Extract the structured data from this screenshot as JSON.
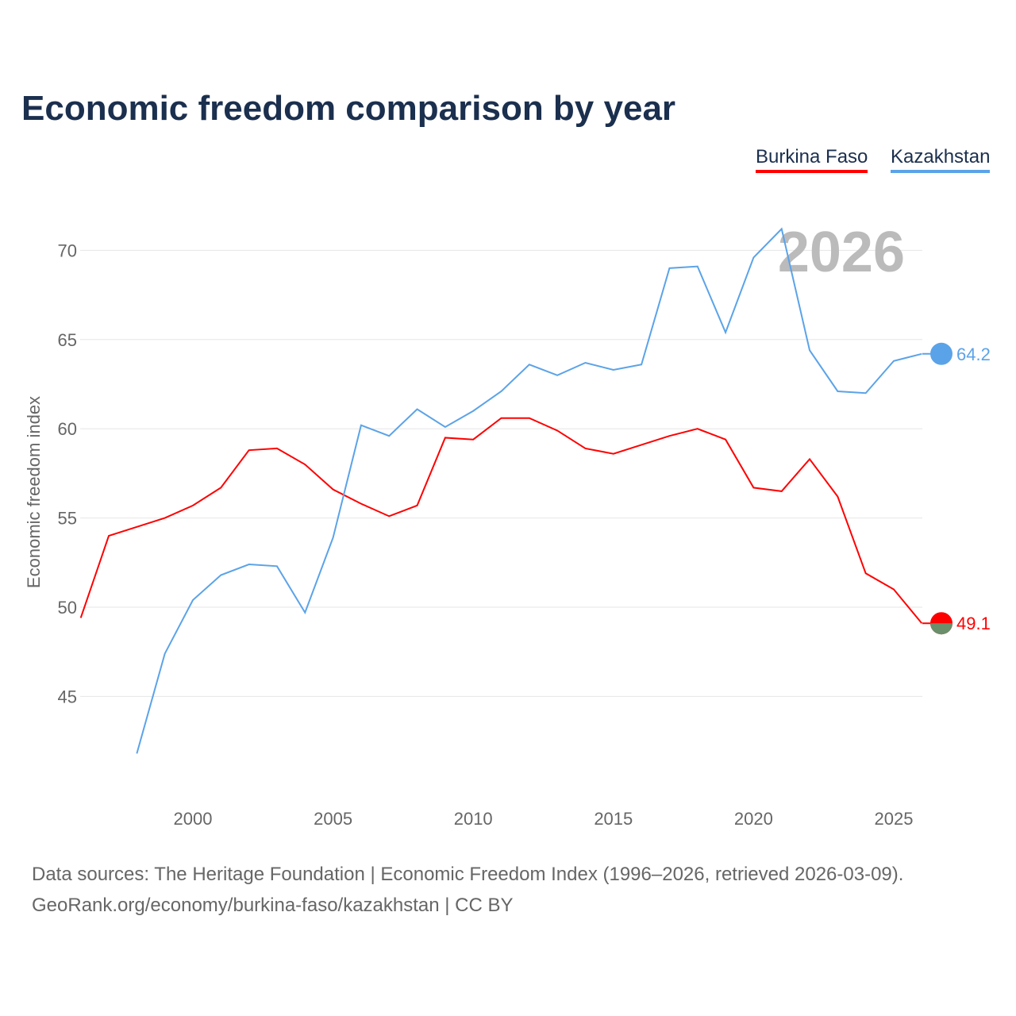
{
  "chart_data": {
    "type": "line",
    "title": "Economic freedom comparison by year",
    "ylabel": "Economic freedom index",
    "xlabel": "",
    "ylim": [
      40,
      72
    ],
    "xlim": [
      1996,
      2026
    ],
    "yticks": [
      45,
      50,
      55,
      60,
      65,
      70
    ],
    "xticks": [
      2000,
      2005,
      2010,
      2015,
      2020,
      2025
    ],
    "grid": true,
    "legend_position": "top-right",
    "year_watermark": "2026",
    "series": [
      {
        "name": "Burkina Faso",
        "color": "#ff0000",
        "end_label": "49.1",
        "x": [
          1996,
          1997,
          1998,
          1999,
          2000,
          2001,
          2002,
          2003,
          2004,
          2005,
          2006,
          2007,
          2008,
          2009,
          2010,
          2011,
          2012,
          2013,
          2014,
          2015,
          2016,
          2017,
          2018,
          2019,
          2020,
          2021,
          2022,
          2023,
          2024,
          2025,
          2026
        ],
        "values": [
          49.4,
          54.0,
          54.5,
          55.0,
          55.7,
          56.7,
          58.8,
          58.9,
          58.0,
          56.6,
          55.8,
          55.1,
          55.7,
          59.5,
          59.4,
          60.6,
          60.6,
          59.9,
          58.9,
          58.6,
          59.1,
          59.6,
          60.0,
          59.4,
          56.7,
          56.5,
          58.3,
          56.2,
          51.9,
          51.0,
          49.1
        ]
      },
      {
        "name": "Kazakhstan",
        "color": "#5ba3e8",
        "end_label": "64.2",
        "x": [
          1998,
          1999,
          2000,
          2001,
          2002,
          2003,
          2004,
          2005,
          2006,
          2007,
          2008,
          2009,
          2010,
          2011,
          2012,
          2013,
          2014,
          2015,
          2016,
          2017,
          2018,
          2019,
          2020,
          2021,
          2022,
          2023,
          2024,
          2025,
          2026
        ],
        "values": [
          41.8,
          47.4,
          50.4,
          51.8,
          52.4,
          52.3,
          49.7,
          53.9,
          60.2,
          59.6,
          61.1,
          60.1,
          61.0,
          62.1,
          63.6,
          63.0,
          63.7,
          63.3,
          63.6,
          69.0,
          69.1,
          65.4,
          69.6,
          71.2,
          64.4,
          62.1,
          62.0,
          63.8,
          64.2
        ]
      }
    ]
  },
  "footer": {
    "source": "Data sources: The Heritage Foundation | Economic Freedom Index (1996–2026, retrieved 2026-03-09).",
    "credit": "GeoRank.org/economy/burkina-faso/kazakhstan | CC BY"
  }
}
